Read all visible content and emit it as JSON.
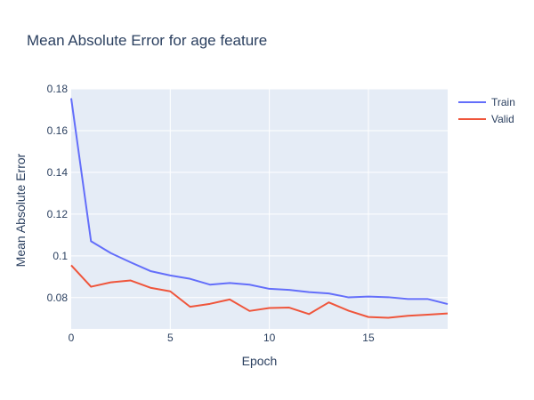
{
  "chart_data": {
    "type": "line",
    "title": "Mean Absolute Error for age feature",
    "xlabel": "Epoch",
    "ylabel": "Mean Absolute Error",
    "x": [
      0,
      1,
      2,
      3,
      4,
      5,
      6,
      7,
      8,
      9,
      10,
      11,
      12,
      13,
      14,
      15,
      16,
      17,
      18,
      19
    ],
    "xlim": [
      0,
      19
    ],
    "ylim": [
      0.065,
      0.18
    ],
    "x_ticks": [
      0,
      5,
      10,
      15
    ],
    "x_tick_labels": [
      "0",
      "5",
      "10",
      "15"
    ],
    "y_ticks": [
      0.08,
      0.1,
      0.12,
      0.14,
      0.16,
      0.18
    ],
    "y_tick_labels": [
      "0.08",
      "0.1",
      "0.12",
      "0.14",
      "0.16",
      "0.18"
    ],
    "grid": true,
    "legend_position": "top-right",
    "series": [
      {
        "name": "Train",
        "color": "#636efa",
        "values": [
          0.1755,
          0.107,
          0.1013,
          0.0969,
          0.0927,
          0.0906,
          0.089,
          0.0862,
          0.087,
          0.0862,
          0.0842,
          0.0837,
          0.0826,
          0.082,
          0.0801,
          0.0805,
          0.0802,
          0.0793,
          0.0793,
          0.0769
        ]
      },
      {
        "name": "Valid",
        "color": "#ef553b",
        "values": [
          0.0955,
          0.0852,
          0.0873,
          0.0882,
          0.0847,
          0.083,
          0.0756,
          0.077,
          0.0791,
          0.0736,
          0.075,
          0.0752,
          0.0721,
          0.0777,
          0.0737,
          0.0707,
          0.0703,
          0.0713,
          0.0718,
          0.0724
        ]
      }
    ]
  }
}
